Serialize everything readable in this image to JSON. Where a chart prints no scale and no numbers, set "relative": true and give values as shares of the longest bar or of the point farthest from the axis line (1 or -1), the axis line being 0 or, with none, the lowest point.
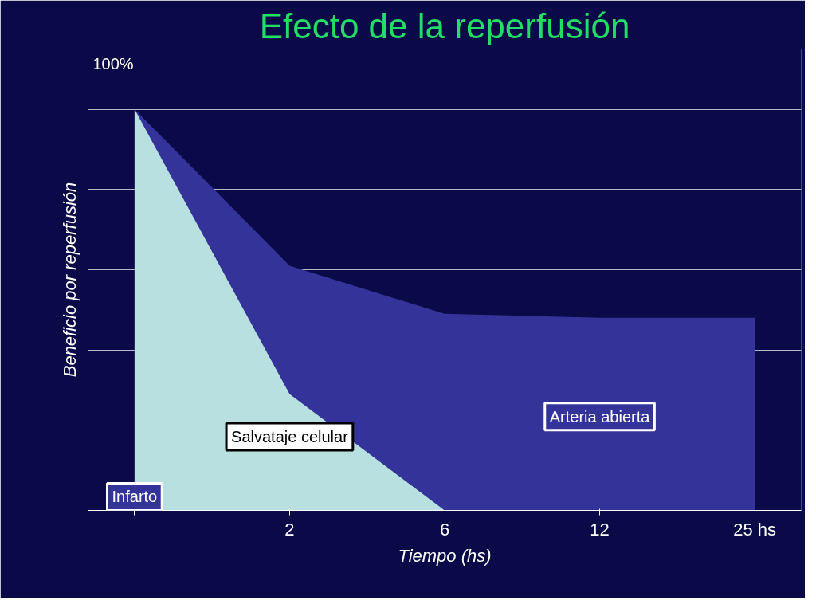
{
  "chart_data": {
    "type": "area",
    "title": "Efecto de la reperfusión",
    "xlabel": "Tiempo (hs)",
    "ylabel": "Beneficio por reperfusión",
    "categories": [
      null,
      "2",
      "6",
      "12",
      "25 hs"
    ],
    "relative": true,
    "grid": "y",
    "series": [
      {
        "color": "#333399",
        "values": [
          1,
          0.61,
          0.49,
          0.48,
          0.48
        ]
      },
      {
        "color": "#b8e0e0",
        "values": [
          1,
          0.29,
          0,
          null,
          null
        ]
      }
    ],
    "annotations": [
      "100%",
      "Salvataje celular",
      "Arteria abierta",
      "Infarto"
    ]
  }
}
